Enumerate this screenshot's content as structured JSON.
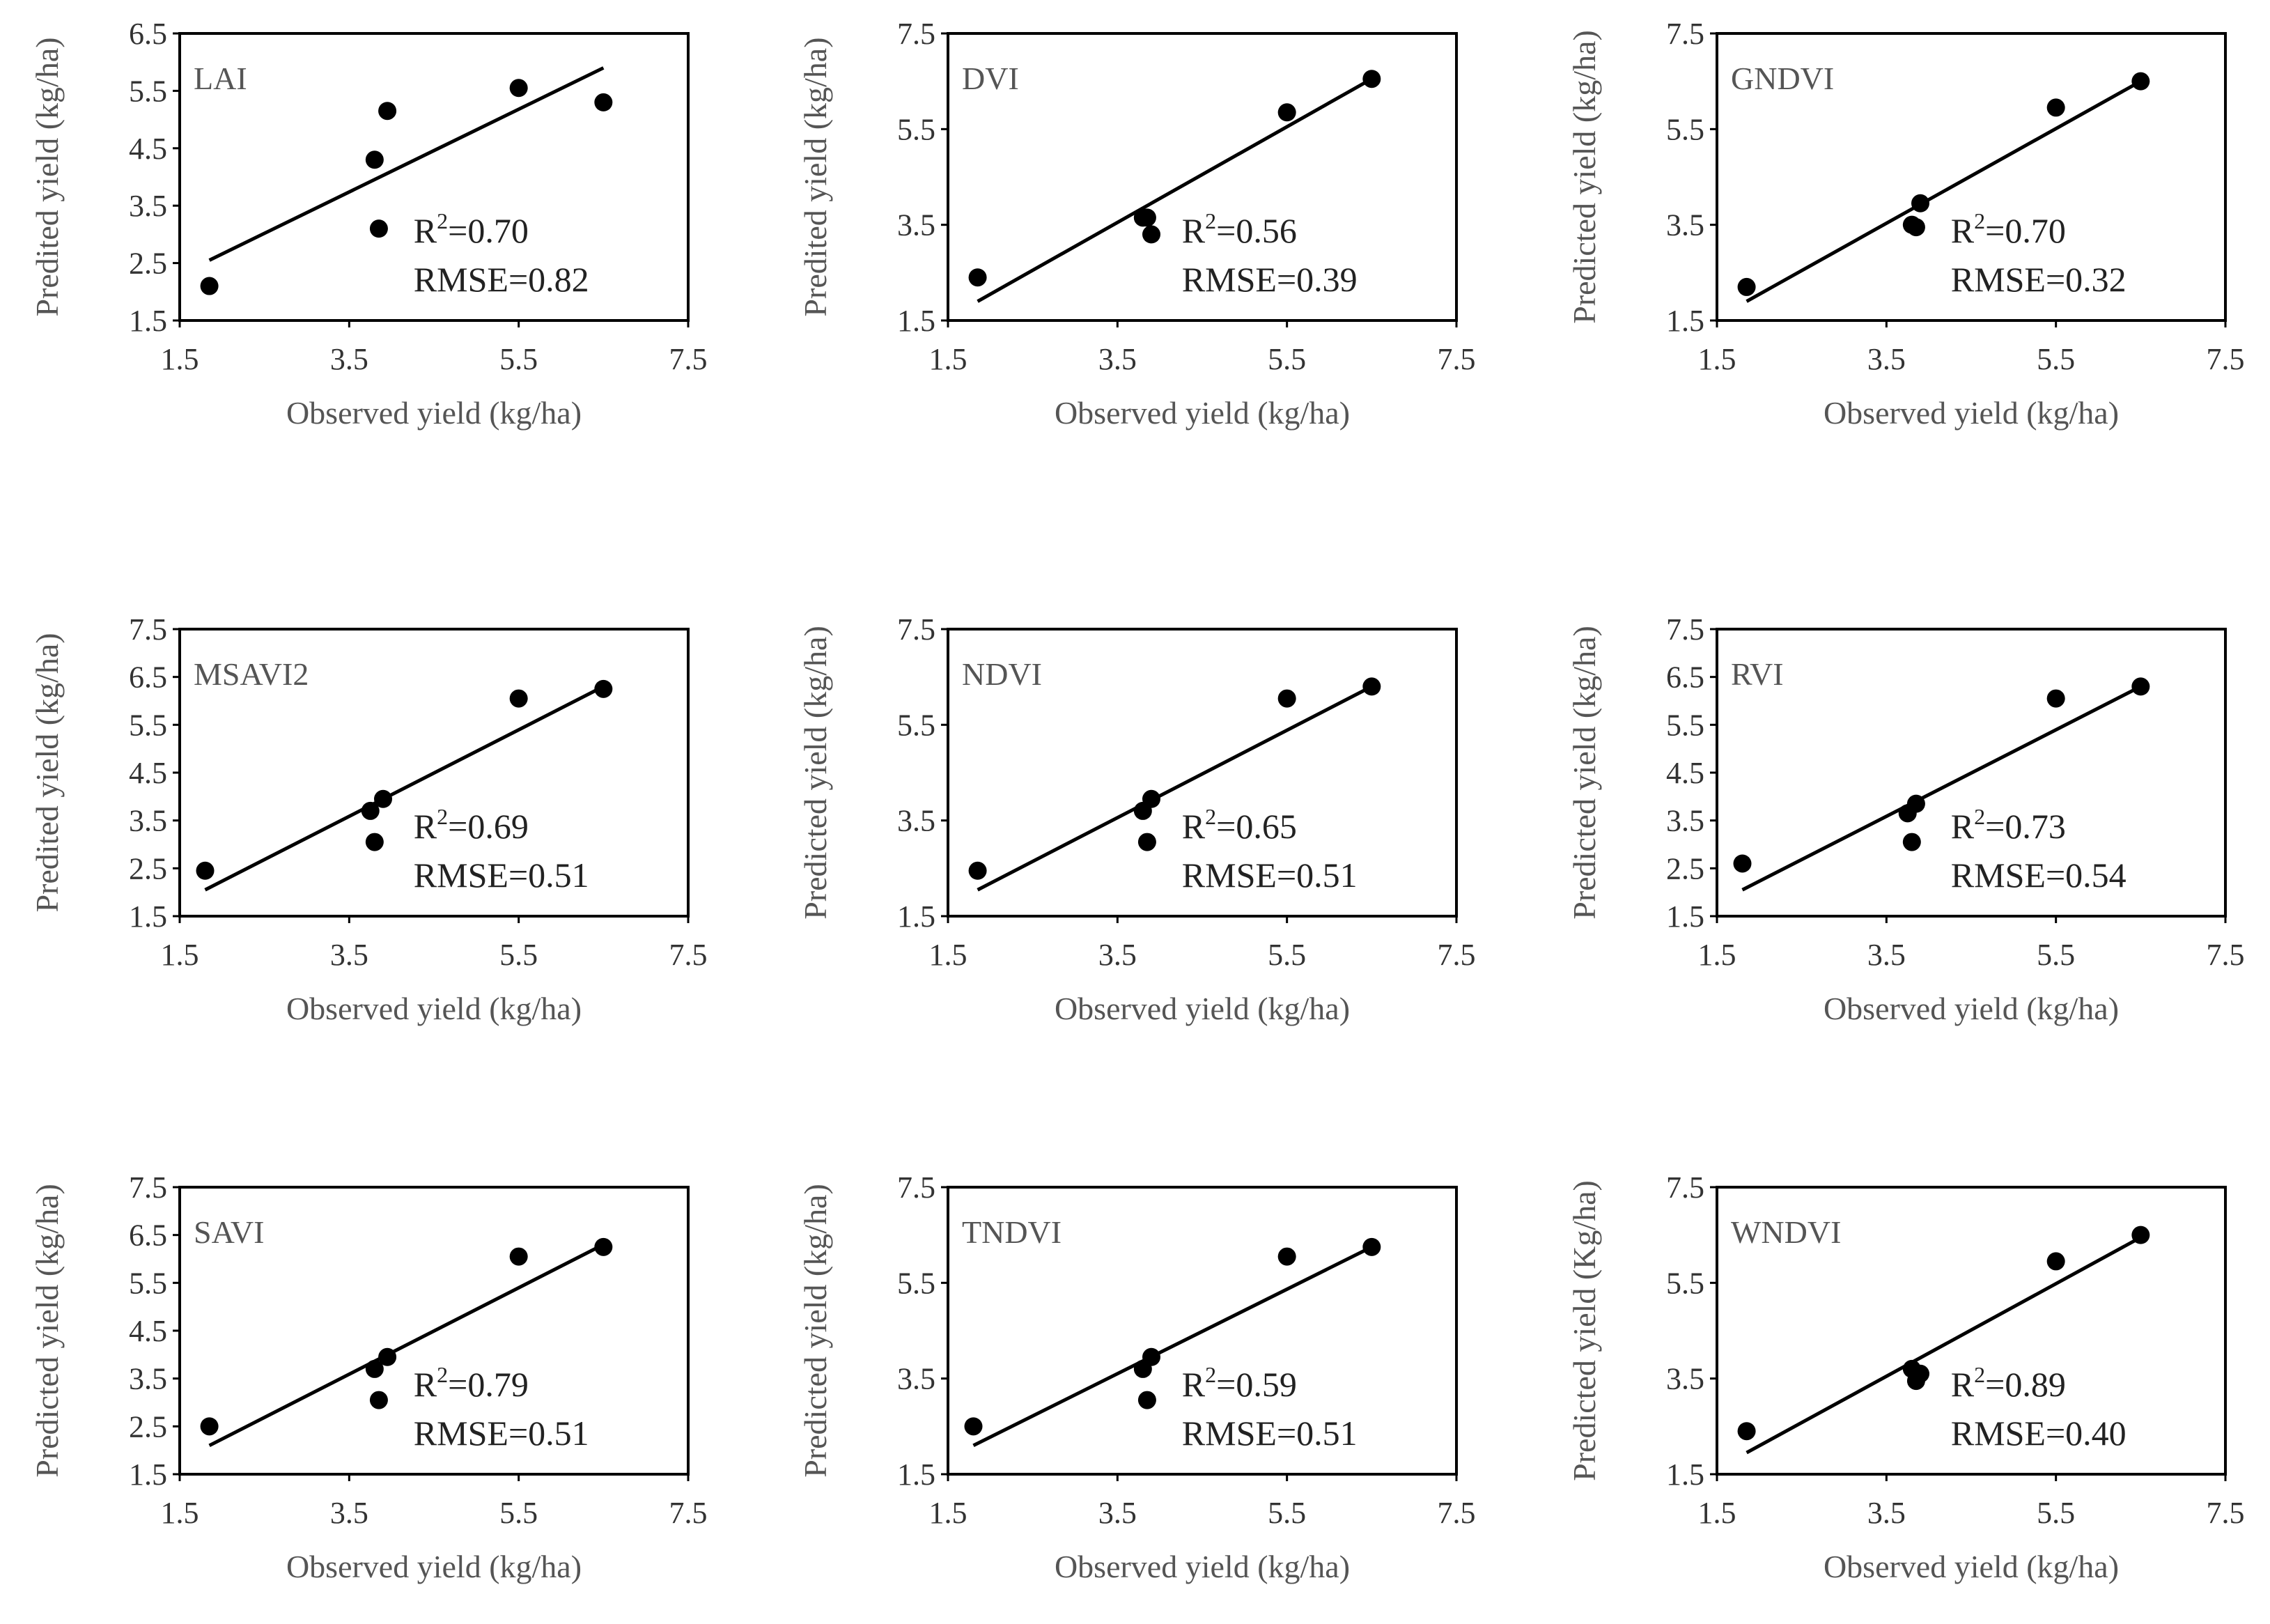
{
  "chart_data": [
    {
      "type": "scatter",
      "panel_label": "LAI",
      "xlabel": "Observed yield (kg/ha)",
      "ylabel": "Predited yield (kg/ha)",
      "xlim": [
        1.5,
        7.5
      ],
      "ylim": [
        1.5,
        6.5
      ],
      "xticks": [
        "1.5",
        "3.5",
        "5.5",
        "7.5"
      ],
      "yticks": [
        "1.5",
        "2.5",
        "3.5",
        "4.5",
        "5.5",
        "6.5"
      ],
      "r2_label": "R",
      "r2_exp": "2",
      "r2_value": "=0.70",
      "rmse": "RMSE=0.82",
      "points": [
        [
          1.85,
          2.1
        ],
        [
          3.8,
          4.3
        ],
        [
          3.85,
          3.1
        ],
        [
          3.95,
          5.15
        ],
        [
          5.5,
          5.55
        ],
        [
          6.5,
          5.3
        ]
      ],
      "fit": [
        [
          1.85,
          2.55
        ],
        [
          6.5,
          5.9
        ]
      ]
    },
    {
      "type": "scatter",
      "panel_label": "DVI",
      "xlabel": "Observed yield (kg/ha)",
      "ylabel": "Predited yield (kg/ha)",
      "xlim": [
        1.5,
        7.5
      ],
      "ylim": [
        1.5,
        7.5
      ],
      "xticks": [
        "1.5",
        "3.5",
        "5.5",
        "7.5"
      ],
      "yticks": [
        "1.5",
        "3.5",
        "5.5",
        "7.5"
      ],
      "r2_label": "R",
      "r2_exp": "2",
      "r2_value": "=0.56",
      "rmse": "RMSE=0.39",
      "points": [
        [
          1.85,
          2.4
        ],
        [
          3.8,
          3.65
        ],
        [
          3.85,
          3.65
        ],
        [
          3.9,
          3.3
        ],
        [
          5.5,
          5.85
        ],
        [
          6.5,
          6.55
        ]
      ],
      "fit": [
        [
          1.85,
          1.9
        ],
        [
          6.5,
          6.55
        ]
      ]
    },
    {
      "type": "scatter",
      "panel_label": "GNDVI",
      "xlabel": "Observed yield (kg/ha)",
      "ylabel": "Predicted yield (kg/ha)",
      "xlim": [
        1.5,
        7.5
      ],
      "ylim": [
        1.5,
        7.5
      ],
      "xticks": [
        "1.5",
        "3.5",
        "5.5",
        "7.5"
      ],
      "yticks": [
        "1.5",
        "3.5",
        "5.5",
        "7.5"
      ],
      "r2_label": "R",
      "r2_exp": "2",
      "r2_value": "=0.70",
      "rmse": "RMSE=0.32",
      "points": [
        [
          1.85,
          2.2
        ],
        [
          3.8,
          3.5
        ],
        [
          3.85,
          3.45
        ],
        [
          3.9,
          3.95
        ],
        [
          5.5,
          5.95
        ],
        [
          6.5,
          6.5
        ]
      ],
      "fit": [
        [
          1.85,
          1.9
        ],
        [
          6.5,
          6.5
        ]
      ]
    },
    {
      "type": "scatter",
      "panel_label": "MSAVI2",
      "xlabel": "Observed yield (kg/ha)",
      "ylabel": "Predited yield (kg/ha)",
      "xlim": [
        1.5,
        7.5
      ],
      "ylim": [
        1.5,
        7.5
      ],
      "xticks": [
        "1.5",
        "3.5",
        "5.5",
        "7.5"
      ],
      "yticks": [
        "1.5",
        "2.5",
        "3.5",
        "4.5",
        "5.5",
        "6.5",
        "7.5"
      ],
      "r2_label": "R",
      "r2_exp": "2",
      "r2_value": "=0.69",
      "rmse": "RMSE=0.51",
      "points": [
        [
          1.8,
          2.45
        ],
        [
          3.75,
          3.7
        ],
        [
          3.8,
          3.05
        ],
        [
          3.9,
          3.95
        ],
        [
          5.5,
          6.05
        ],
        [
          6.5,
          6.25
        ]
      ],
      "fit": [
        [
          1.8,
          2.05
        ],
        [
          6.5,
          6.3
        ]
      ]
    },
    {
      "type": "scatter",
      "panel_label": "NDVI",
      "xlabel": "Observed yield (kg/ha)",
      "ylabel": "Predicted yield (kg/ha)",
      "xlim": [
        1.5,
        7.5
      ],
      "ylim": [
        1.5,
        7.5
      ],
      "xticks": [
        "1.5",
        "3.5",
        "5.5",
        "7.5"
      ],
      "yticks": [
        "1.5",
        "3.5",
        "5.5",
        "7.5"
      ],
      "r2_label": "R",
      "r2_exp": "2",
      "r2_value": "=0.65",
      "rmse": "RMSE=0.51",
      "points": [
        [
          1.85,
          2.45
        ],
        [
          3.8,
          3.7
        ],
        [
          3.85,
          3.05
        ],
        [
          3.9,
          3.95
        ],
        [
          5.5,
          6.05
        ],
        [
          6.5,
          6.3
        ]
      ],
      "fit": [
        [
          1.85,
          2.05
        ],
        [
          6.5,
          6.3
        ]
      ]
    },
    {
      "type": "scatter",
      "panel_label": "RVI",
      "xlabel": "Observed yield (kg/ha)",
      "ylabel": "Predicted yield (kg/ha)",
      "xlim": [
        1.5,
        7.5
      ],
      "ylim": [
        1.5,
        7.5
      ],
      "xticks": [
        "1.5",
        "3.5",
        "5.5",
        "7.5"
      ],
      "yticks": [
        "1.5",
        "2.5",
        "3.5",
        "4.5",
        "5.5",
        "6.5",
        "7.5"
      ],
      "r2_label": "R",
      "r2_exp": "2",
      "r2_value": "=0.73",
      "rmse": "RMSE=0.54",
      "points": [
        [
          1.8,
          2.6
        ],
        [
          3.75,
          3.65
        ],
        [
          3.8,
          3.05
        ],
        [
          3.85,
          3.85
        ],
        [
          5.5,
          6.05
        ],
        [
          6.5,
          6.3
        ]
      ],
      "fit": [
        [
          1.8,
          2.05
        ],
        [
          6.5,
          6.3
        ]
      ]
    },
    {
      "type": "scatter",
      "panel_label": "SAVI",
      "xlabel": "Observed yield (kg/ha)",
      "ylabel": "Predicted yield (kg/ha)",
      "xlim": [
        1.5,
        7.5
      ],
      "ylim": [
        1.5,
        7.5
      ],
      "xticks": [
        "1.5",
        "3.5",
        "5.5",
        "7.5"
      ],
      "yticks": [
        "1.5",
        "2.5",
        "3.5",
        "4.5",
        "5.5",
        "6.5",
        "7.5"
      ],
      "r2_label": "R",
      "r2_exp": "2",
      "r2_value": "=0.79",
      "rmse": "RMSE=0.51",
      "points": [
        [
          1.85,
          2.5
        ],
        [
          3.8,
          3.7
        ],
        [
          3.85,
          3.05
        ],
        [
          3.95,
          3.95
        ],
        [
          5.5,
          6.05
        ],
        [
          6.5,
          6.25
        ]
      ],
      "fit": [
        [
          1.85,
          2.1
        ],
        [
          6.5,
          6.3
        ]
      ]
    },
    {
      "type": "scatter",
      "panel_label": "TNDVI",
      "xlabel": "Observed yield (kg/ha)",
      "ylabel": "Predicted yield (kg/ha)",
      "xlim": [
        1.5,
        7.5
      ],
      "ylim": [
        1.5,
        7.5
      ],
      "xticks": [
        "1.5",
        "3.5",
        "5.5",
        "7.5"
      ],
      "yticks": [
        "1.5",
        "3.5",
        "5.5",
        "7.5"
      ],
      "r2_label": "R",
      "r2_exp": "2",
      "r2_value": "=0.59",
      "rmse": "RMSE=0.51",
      "points": [
        [
          1.8,
          2.5
        ],
        [
          3.8,
          3.7
        ],
        [
          3.85,
          3.05
        ],
        [
          3.9,
          3.95
        ],
        [
          5.5,
          6.05
        ],
        [
          6.5,
          6.25
        ]
      ],
      "fit": [
        [
          1.8,
          2.1
        ],
        [
          6.5,
          6.25
        ]
      ]
    },
    {
      "type": "scatter",
      "panel_label": "WNDVI",
      "xlabel": "Observed yield (kg/ha)",
      "ylabel": "Predicted yield (Kg/ha)",
      "xlim": [
        1.5,
        7.5
      ],
      "ylim": [
        1.5,
        7.5
      ],
      "xticks": [
        "1.5",
        "3.5",
        "5.5",
        "7.5"
      ],
      "yticks": [
        "1.5",
        "3.5",
        "5.5",
        "7.5"
      ],
      "r2_label": "R",
      "r2_exp": "2",
      "r2_value": "=0.89",
      "rmse": "RMSE=0.40",
      "points": [
        [
          1.85,
          2.4
        ],
        [
          3.8,
          3.7
        ],
        [
          3.85,
          3.45
        ],
        [
          3.9,
          3.6
        ],
        [
          5.5,
          5.95
        ],
        [
          6.5,
          6.5
        ]
      ],
      "fit": [
        [
          1.85,
          1.95
        ],
        [
          6.5,
          6.45
        ]
      ]
    }
  ]
}
